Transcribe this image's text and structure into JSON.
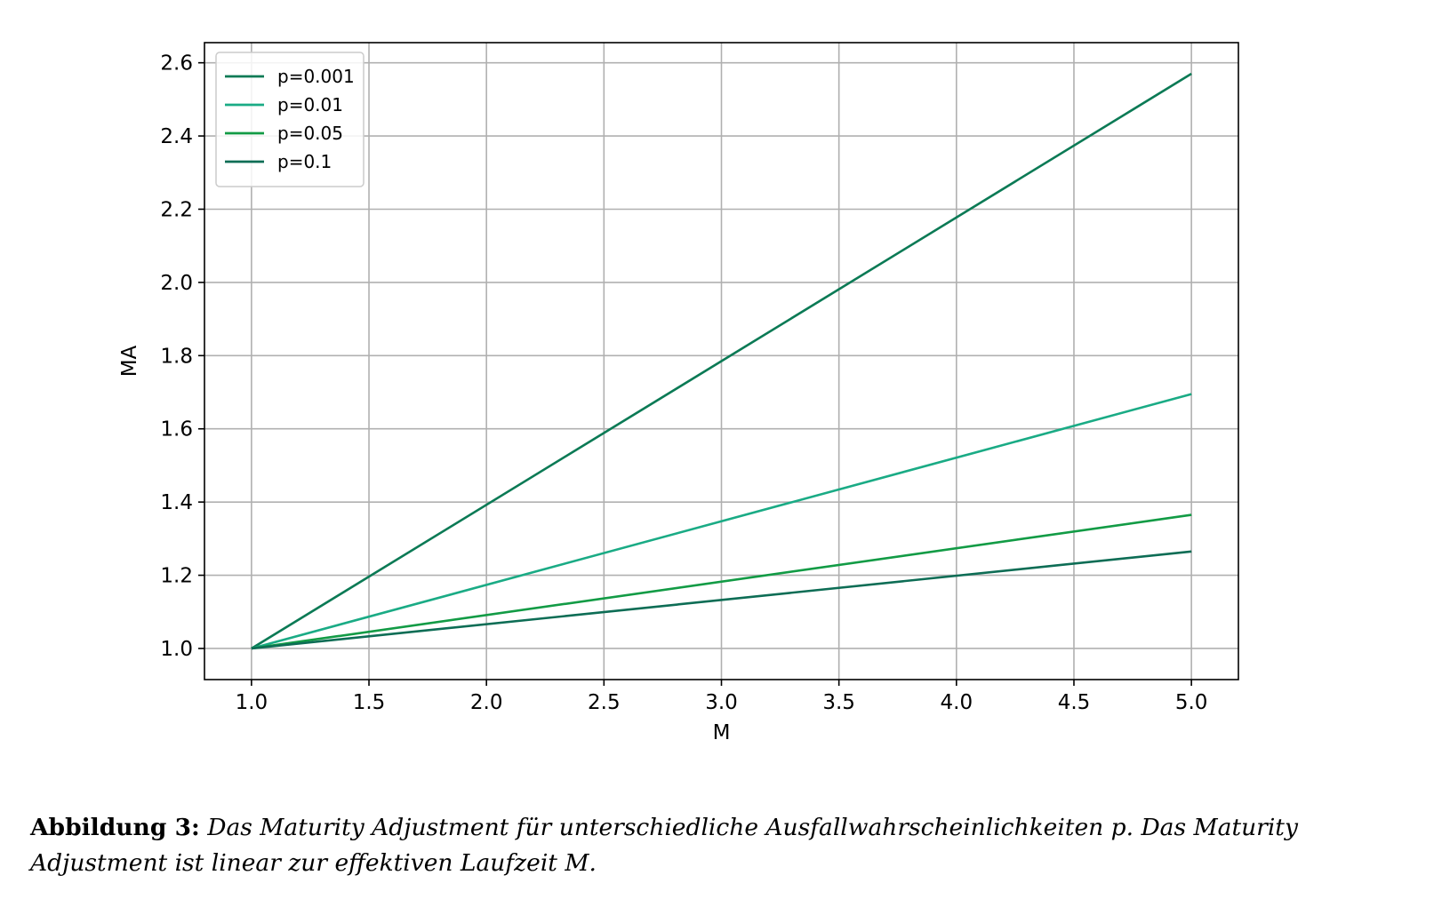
{
  "chart_data": {
    "type": "line",
    "xlabel": "M",
    "ylabel": "MA",
    "xlim": [
      0.8,
      5.2
    ],
    "ylim": [
      0.915,
      2.655
    ],
    "xticks": [
      1.0,
      1.5,
      2.0,
      2.5,
      3.0,
      3.5,
      4.0,
      4.5,
      5.0
    ],
    "xtick_labels": [
      "1.0",
      "1.5",
      "2.0",
      "2.5",
      "3.0",
      "3.5",
      "4.0",
      "4.5",
      "5.0"
    ],
    "yticks": [
      1.0,
      1.2,
      1.4,
      1.6,
      1.8,
      2.0,
      2.2,
      2.4,
      2.6
    ],
    "ytick_labels": [
      "1.0",
      "1.2",
      "1.4",
      "1.6",
      "1.8",
      "2.0",
      "2.2",
      "2.4",
      "2.6"
    ],
    "grid": true,
    "legend": "top-left",
    "series": [
      {
        "name": "p=0.001",
        "color": "#0b7a55",
        "x": [
          1.0,
          5.0
        ],
        "y": [
          1.0,
          2.57
        ]
      },
      {
        "name": "p=0.01",
        "color": "#1aab85",
        "x": [
          1.0,
          5.0
        ],
        "y": [
          1.0,
          1.695
        ]
      },
      {
        "name": "p=0.05",
        "color": "#129b45",
        "x": [
          1.0,
          5.0
        ],
        "y": [
          1.0,
          1.365
        ]
      },
      {
        "name": "p=0.1",
        "color": "#0d6d55",
        "x": [
          1.0,
          5.0
        ],
        "y": [
          1.0,
          1.265
        ]
      }
    ]
  },
  "caption": {
    "label": "Abbildung 3:",
    "text": "Das Maturity Adjustment für unterschiedliche Ausfallwahrscheinlichkeiten p. Das Maturity Adjustment ist linear zur effektiven Laufzeit M."
  }
}
